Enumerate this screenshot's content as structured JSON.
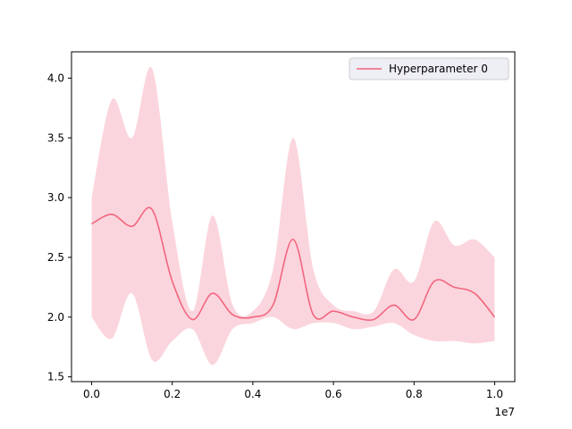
{
  "chart_data": {
    "type": "line",
    "title": "",
    "xlabel": "",
    "ylabel": "",
    "x_offset_label": "1e7",
    "xlim": [
      -0.05,
      1.05
    ],
    "ylim": [
      1.46,
      4.22
    ],
    "xticks": [
      0.0,
      0.2,
      0.4,
      0.6,
      0.8,
      1.0
    ],
    "xtick_labels": [
      "0.0",
      "0.2",
      "0.4",
      "0.6",
      "0.8",
      "1.0"
    ],
    "yticks": [
      1.5,
      2.0,
      2.5,
      3.0,
      3.5,
      4.0
    ],
    "ytick_labels": [
      "1.5",
      "2.0",
      "2.5",
      "3.0",
      "3.5",
      "4.0"
    ],
    "grid": false,
    "legend_position": "top-right",
    "colors": {
      "line": "#f2667f",
      "band": "#f8b9c6"
    },
    "series": [
      {
        "name": "Hyperparameter 0",
        "x": [
          0.0,
          0.05,
          0.1,
          0.15,
          0.2,
          0.25,
          0.3,
          0.35,
          0.4,
          0.45,
          0.5,
          0.55,
          0.6,
          0.65,
          0.7,
          0.75,
          0.8,
          0.85,
          0.9,
          0.95,
          1.0
        ],
        "mean": [
          2.78,
          2.86,
          2.76,
          2.9,
          2.3,
          1.98,
          2.2,
          2.02,
          2.0,
          2.1,
          2.65,
          2.02,
          2.05,
          2.0,
          1.98,
          2.1,
          1.98,
          2.3,
          2.25,
          2.2,
          2.0
        ],
        "lower": [
          2.0,
          1.82,
          2.2,
          1.64,
          1.8,
          1.9,
          1.6,
          1.9,
          1.95,
          2.0,
          1.9,
          1.95,
          1.95,
          1.9,
          1.92,
          1.95,
          1.85,
          1.8,
          1.8,
          1.78,
          1.8
        ],
        "upper": [
          3.0,
          3.82,
          3.5,
          4.08,
          2.8,
          2.05,
          2.85,
          2.1,
          2.05,
          2.4,
          3.5,
          2.4,
          2.1,
          2.05,
          2.05,
          2.4,
          2.3,
          2.8,
          2.6,
          2.65,
          2.5
        ]
      }
    ]
  }
}
